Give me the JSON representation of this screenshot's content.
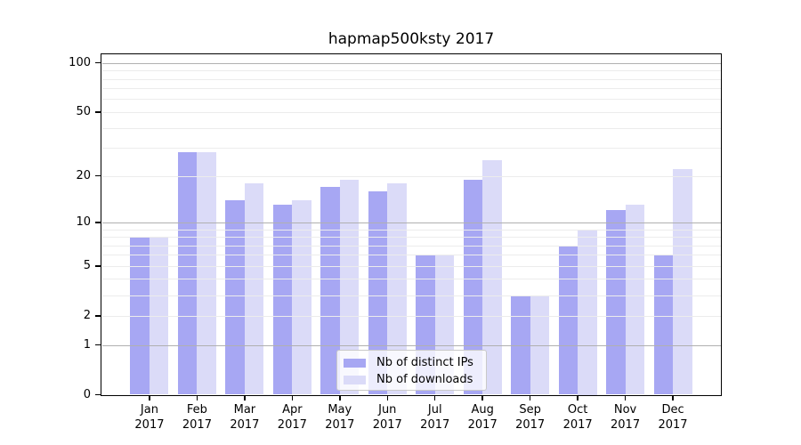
{
  "chart_data": {
    "type": "bar",
    "title": "hapmap500ksty 2017",
    "categories": [
      "Jan",
      "Feb",
      "Mar",
      "Apr",
      "May",
      "Jun",
      "Jul",
      "Aug",
      "Sep",
      "Oct",
      "Nov",
      "Dec"
    ],
    "year": "2017",
    "series": [
      {
        "name": "Nb of distinct IPs",
        "color": "#a7a7f3",
        "values": [
          8,
          28,
          14,
          13,
          17,
          16,
          6,
          19,
          3,
          7,
          12,
          6
        ]
      },
      {
        "name": "Nb of downloads",
        "color": "#dbdbf8",
        "values": [
          8,
          28,
          18,
          14,
          19,
          18,
          6,
          25,
          3,
          9,
          13,
          22
        ]
      }
    ],
    "xlabel": "",
    "ylabel": "",
    "yscale": "log10(1+x)",
    "ylim": [
      0,
      114
    ],
    "yticks": [
      0,
      1,
      2,
      5,
      10,
      20,
      50,
      100
    ],
    "major_gridlines": [
      1,
      10,
      100
    ],
    "minor_gridlines": [
      2,
      3,
      4,
      5,
      6,
      7,
      8,
      9,
      20,
      30,
      40,
      50,
      60,
      70,
      80,
      90
    ],
    "grid": true,
    "legend_position": "lower center",
    "colors": {
      "major_grid": "#b0b0b0",
      "minor_grid": "#ececec",
      "axis": "#000000"
    }
  }
}
